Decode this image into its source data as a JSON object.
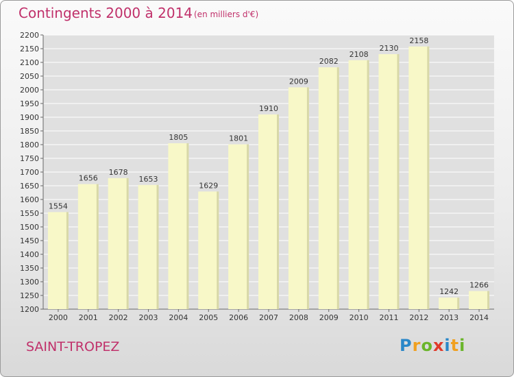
{
  "header": {
    "title": "Contingents 2000 à 2014",
    "subtitle": "(en milliers d'€)"
  },
  "footer": {
    "commune": "SAINT-TROPEZ",
    "logo": [
      "P",
      "r",
      "o",
      "x",
      "i",
      "t",
      "i"
    ]
  },
  "colors": {
    "title": "#c0306a",
    "bar_fill": "#f8f8c8",
    "bar_shade": "#d8d8a8",
    "grid": "#ffffff",
    "plot_bg": "#e0e0e0"
  },
  "chart_data": {
    "type": "bar",
    "title": "Contingents 2000 à 2014",
    "subtitle": "(en milliers d'€)",
    "categories": [
      "2000",
      "2001",
      "2002",
      "2003",
      "2004",
      "2005",
      "2006",
      "2007",
      "2008",
      "2009",
      "2010",
      "2011",
      "2012",
      "2013",
      "2014"
    ],
    "values": [
      1554,
      1656,
      1678,
      1653,
      1805,
      1629,
      1801,
      1910,
      2009,
      2082,
      2108,
      2130,
      2158,
      1242,
      1266
    ],
    "ylim": [
      1200,
      2200
    ],
    "ytick_step": 50,
    "xlabel": "",
    "ylabel": "",
    "grid": true,
    "legend": "none"
  }
}
